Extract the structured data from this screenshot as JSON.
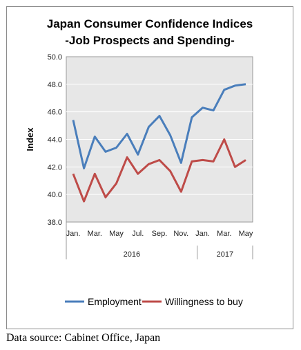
{
  "chart_data": {
    "type": "line",
    "title": "Japan Consumer Confidence Indices",
    "subtitle": "-Job Prospects and Spending-",
    "ylabel": "Index",
    "ylim": [
      38.0,
      50.0
    ],
    "yticks": [
      "50.0",
      "48.0",
      "46.0",
      "44.0",
      "42.0",
      "40.0",
      "38.0"
    ],
    "months": [
      "2016-01",
      "2016-02",
      "2016-03",
      "2016-04",
      "2016-05",
      "2016-06",
      "2016-07",
      "2016-08",
      "2016-09",
      "2016-10",
      "2016-11",
      "2016-12",
      "2017-01",
      "2017-02",
      "2017-03",
      "2017-04",
      "2017-05"
    ],
    "tick_labels": [
      {
        "index": 0,
        "label": "Jan."
      },
      {
        "index": 2,
        "label": "Mar."
      },
      {
        "index": 4,
        "label": "May"
      },
      {
        "index": 6,
        "label": "Jul."
      },
      {
        "index": 8,
        "label": "Sep."
      },
      {
        "index": 10,
        "label": "Nov."
      },
      {
        "index": 12,
        "label": "Jan."
      },
      {
        "index": 14,
        "label": "Mar."
      },
      {
        "index": 16,
        "label": "May"
      }
    ],
    "years": [
      {
        "label": "2016",
        "start": 0,
        "end": 11
      },
      {
        "label": "2017",
        "start": 12,
        "end": 16
      }
    ],
    "series": [
      {
        "name": "Employment",
        "color": "#4a7ebb",
        "values": [
          45.4,
          41.9,
          44.2,
          43.1,
          43.4,
          44.4,
          42.9,
          44.9,
          45.7,
          44.3,
          42.3,
          45.6,
          46.3,
          46.1,
          47.6,
          47.9,
          48.0
        ]
      },
      {
        "name": "Willingness to buy",
        "color": "#be4b48",
        "values": [
          41.5,
          39.5,
          41.5,
          39.8,
          40.8,
          42.7,
          41.5,
          42.2,
          42.5,
          41.7,
          40.2,
          42.4,
          42.5,
          42.4,
          44.0,
          42.0,
          42.5
        ]
      }
    ],
    "grid": true,
    "plot_background": "#e7e7e7",
    "legend_position": "bottom"
  },
  "source": "Data source: Cabinet Office, Japan"
}
